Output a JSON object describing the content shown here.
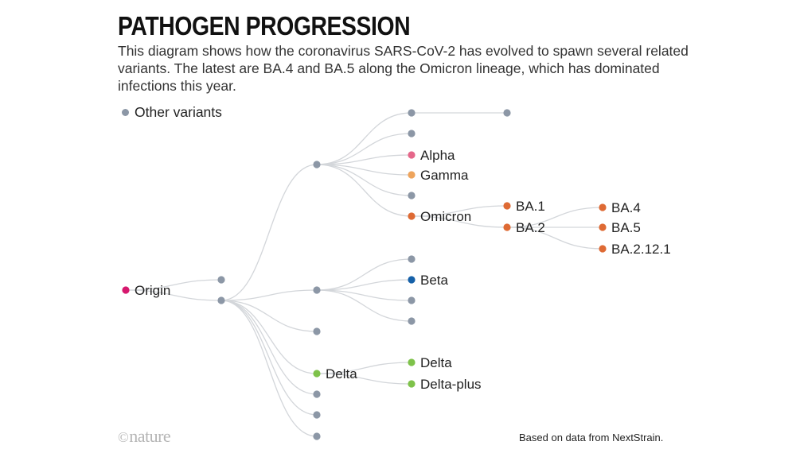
{
  "title": "PATHOGEN PROGRESSION",
  "subtitle": "This diagram shows how the coronavirus SARS-CoV-2 has evolved to spawn several related variants. The latest are BA.4 and BA.5 along the Omicron lineage, which has dominated infections this year.",
  "legend": {
    "label": "Other variants",
    "color": "#8c97a6"
  },
  "colors": {
    "other": "#8c97a6",
    "origin": "#d6186e",
    "alpha": "#e5678a",
    "gamma": "#eea45c",
    "omicron": "#de6a34",
    "beta": "#1560a8",
    "delta": "#7ec24a",
    "edge": "#d3d6da"
  },
  "logo": {
    "symbol": "©",
    "text": "nature"
  },
  "source": "Based on data from NextStrain.",
  "tree": {
    "nodes": [
      {
        "id": "origin",
        "label": "Origin",
        "color": "origin"
      },
      {
        "id": "n1",
        "label": "",
        "color": "other"
      },
      {
        "id": "n2",
        "label": "",
        "color": "other"
      },
      {
        "id": "n3",
        "label": "",
        "color": "other"
      },
      {
        "id": "n4",
        "label": "",
        "color": "other"
      },
      {
        "id": "n5",
        "label": "",
        "color": "other"
      },
      {
        "id": "n6",
        "label": "Delta",
        "color": "delta"
      },
      {
        "id": "n7",
        "label": "",
        "color": "other"
      },
      {
        "id": "n8",
        "label": "",
        "color": "other"
      },
      {
        "id": "n9",
        "label": "",
        "color": "other"
      },
      {
        "id": "a1",
        "label": "",
        "color": "other"
      },
      {
        "id": "a2",
        "label": "",
        "color": "other"
      },
      {
        "id": "alpha",
        "label": "Alpha",
        "color": "alpha"
      },
      {
        "id": "gamma",
        "label": "Gamma",
        "color": "gamma"
      },
      {
        "id": "a5",
        "label": "",
        "color": "other"
      },
      {
        "id": "omicron",
        "label": "Omicron",
        "color": "omicron"
      },
      {
        "id": "a1c",
        "label": "",
        "color": "other"
      },
      {
        "id": "ba1",
        "label": "BA.1",
        "color": "omicron"
      },
      {
        "id": "ba2",
        "label": "BA.2",
        "color": "omicron"
      },
      {
        "id": "ba4",
        "label": "BA.4",
        "color": "omicron"
      },
      {
        "id": "ba5",
        "label": "BA.5",
        "color": "omicron"
      },
      {
        "id": "ba2121",
        "label": "BA.2.12.1",
        "color": "omicron"
      },
      {
        "id": "b1",
        "label": "",
        "color": "other"
      },
      {
        "id": "beta",
        "label": "Beta",
        "color": "beta"
      },
      {
        "id": "b3",
        "label": "",
        "color": "other"
      },
      {
        "id": "b4",
        "label": "",
        "color": "other"
      },
      {
        "id": "delta2",
        "label": "Delta",
        "color": "delta"
      },
      {
        "id": "deltaplus",
        "label": "Delta-plus",
        "color": "delta"
      }
    ],
    "edges": [
      [
        "origin",
        "n1"
      ],
      [
        "origin",
        "n2"
      ],
      [
        "n2",
        "n3"
      ],
      [
        "n2",
        "n4"
      ],
      [
        "n2",
        "n5"
      ],
      [
        "n2",
        "n6"
      ],
      [
        "n2",
        "n7"
      ],
      [
        "n2",
        "n8"
      ],
      [
        "n2",
        "n9"
      ],
      [
        "n3",
        "a1"
      ],
      [
        "n3",
        "a2"
      ],
      [
        "n3",
        "alpha"
      ],
      [
        "n3",
        "gamma"
      ],
      [
        "n3",
        "a5"
      ],
      [
        "n3",
        "omicron"
      ],
      [
        "a1",
        "a1c"
      ],
      [
        "omicron",
        "ba1"
      ],
      [
        "omicron",
        "ba2"
      ],
      [
        "ba2",
        "ba4"
      ],
      [
        "ba2",
        "ba5"
      ],
      [
        "ba2",
        "ba2121"
      ],
      [
        "n4",
        "b1"
      ],
      [
        "n4",
        "beta"
      ],
      [
        "n4",
        "b3"
      ],
      [
        "n4",
        "b4"
      ],
      [
        "n6",
        "delta2"
      ],
      [
        "n6",
        "deltaplus"
      ]
    ]
  }
}
